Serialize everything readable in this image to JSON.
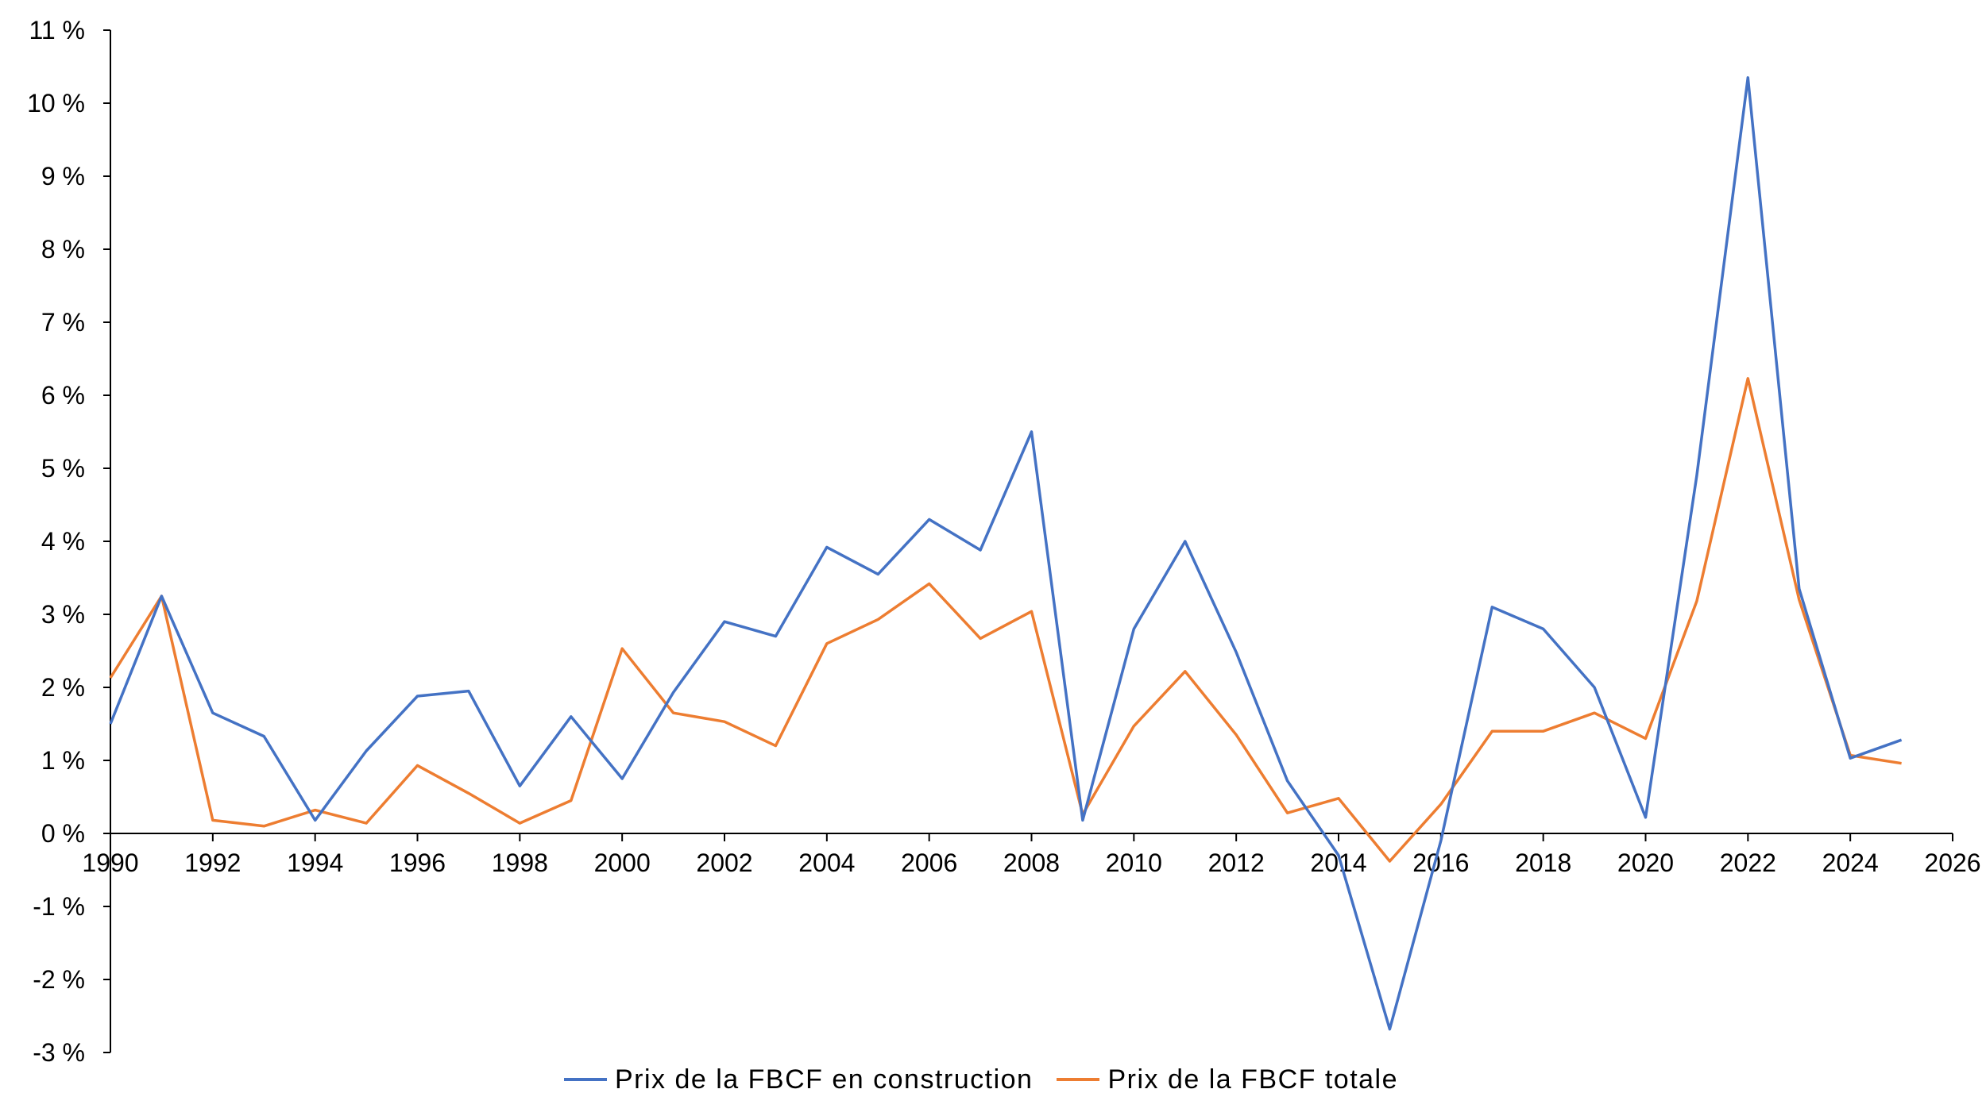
{
  "chart_data": {
    "type": "line",
    "title": "",
    "xlabel": "",
    "ylabel": "",
    "xlim": [
      1990,
      2026
    ],
    "ylim": [
      -3,
      11
    ],
    "x_ticks": [
      "1990",
      "1992",
      "1994",
      "1996",
      "1998",
      "2000",
      "2002",
      "2004",
      "2006",
      "2008",
      "2010",
      "2012",
      "2014",
      "2016",
      "2018",
      "2020",
      "2022",
      "2024",
      "2026"
    ],
    "y_ticks": [
      "-3 %",
      "-2 %",
      "-1 %",
      "0 %",
      "1 %",
      "2 %",
      "3 %",
      "4 %",
      "5 %",
      "6 %",
      "7 %",
      "8 %",
      "9 %",
      "10 %",
      "11 %"
    ],
    "grid": false,
    "legend_position": "bottom",
    "x": [
      1990,
      1991,
      1992,
      1993,
      1994,
      1995,
      1996,
      1997,
      1998,
      1999,
      2000,
      2001,
      2002,
      2003,
      2004,
      2005,
      2006,
      2007,
      2008,
      2009,
      2010,
      2011,
      2012,
      2013,
      2014,
      2015,
      2016,
      2017,
      2018,
      2019,
      2020,
      2021,
      2022,
      2023,
      2024,
      2025
    ],
    "series": [
      {
        "name": "Prix de la FBCF en construction",
        "color": "#4472C4",
        "values": [
          1.5,
          3.25,
          1.65,
          1.33,
          0.18,
          1.13,
          1.88,
          1.95,
          0.65,
          1.6,
          0.75,
          1.93,
          2.9,
          2.7,
          3.92,
          3.55,
          4.3,
          3.88,
          5.5,
          0.18,
          2.8,
          4.0,
          2.48,
          0.72,
          -0.3,
          -2.68,
          -0.1,
          3.1,
          2.8,
          2.0,
          0.22,
          4.9,
          10.35,
          3.35,
          1.03,
          1.28
        ]
      },
      {
        "name": "Prix de la FBCF totale",
        "color": "#ED7D31",
        "values": [
          2.13,
          3.25,
          0.18,
          0.1,
          0.32,
          0.14,
          0.93,
          0.55,
          0.14,
          0.45,
          2.53,
          1.65,
          1.53,
          1.2,
          2.6,
          2.93,
          3.42,
          2.67,
          3.04,
          0.26,
          1.47,
          2.22,
          1.35,
          0.28,
          0.48,
          -0.38,
          0.4,
          1.4,
          1.4,
          1.65,
          1.3,
          3.18,
          6.23,
          3.2,
          1.07,
          0.96
        ]
      }
    ]
  }
}
